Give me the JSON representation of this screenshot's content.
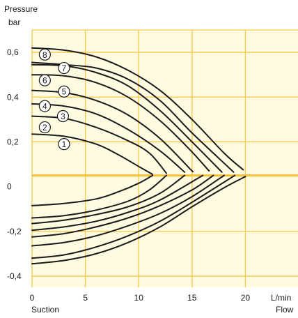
{
  "chart_data": {
    "type": "line",
    "ylabel": [
      "Pressure",
      "bar"
    ],
    "xlabel": [
      "L/min",
      "Flow"
    ],
    "x_origin_label": "Suction",
    "xlim": [
      0,
      25
    ],
    "ylim": [
      -0.45,
      0.7
    ],
    "x_ticks": [
      0,
      5,
      10,
      15,
      20
    ],
    "x_tick_labels": [
      "0",
      "5",
      "10",
      "15",
      "20"
    ],
    "y_ticks": [
      0.6,
      0.4,
      0.2,
      0,
      -0.2,
      -0.4
    ],
    "y_tick_labels": [
      "0,6",
      "0,4",
      "0,2",
      "0",
      "-0,2",
      "-0,4"
    ],
    "zero_line_y": 0.05,
    "grid": true,
    "colors": {
      "background": "#FFFBE0",
      "grid": "#F5C84A",
      "zero_line": "#F2C034",
      "curve": "#1A1A1A"
    },
    "series": [
      {
        "name": "1",
        "label_at": [
          3.0,
          0.19
        ],
        "x": [
          0,
          3,
          6,
          8,
          10,
          11.3
        ],
        "y": [
          0.235,
          0.225,
          0.19,
          0.145,
          0.09,
          0.055
        ]
      },
      {
        "name": "2",
        "label_at": [
          1.2,
          0.265
        ],
        "x": [
          0,
          3,
          6,
          9,
          11,
          12.6
        ],
        "y": [
          0.315,
          0.305,
          0.265,
          0.205,
          0.15,
          0.06
        ]
      },
      {
        "name": "3",
        "label_at": [
          2.9,
          0.315
        ],
        "x": [
          0,
          3,
          6,
          9,
          12,
          14.3
        ],
        "y": [
          0.37,
          0.36,
          0.325,
          0.255,
          0.16,
          0.065
        ]
      },
      {
        "name": "4",
        "label_at": [
          1.2,
          0.36
        ],
        "x": [
          0,
          3,
          6,
          9,
          12,
          14.8,
          15.0
        ],
        "y": [
          0.43,
          0.42,
          0.385,
          0.32,
          0.215,
          0.08,
          0.07
        ]
      },
      {
        "name": "5",
        "label_at": [
          3.0,
          0.425
        ],
        "x": [
          0,
          3,
          6,
          9,
          12,
          14.8,
          16.6
        ],
        "y": [
          0.5,
          0.495,
          0.465,
          0.4,
          0.295,
          0.165,
          0.07
        ]
      },
      {
        "name": "6",
        "label_at": [
          1.2,
          0.475
        ],
        "x": [
          0,
          3,
          6,
          9,
          12,
          15,
          17.8
        ],
        "y": [
          0.545,
          0.54,
          0.51,
          0.45,
          0.34,
          0.2,
          0.065
        ]
      },
      {
        "name": "7",
        "label_at": [
          3.0,
          0.53
        ],
        "x": [
          0,
          3,
          6,
          9,
          12,
          15,
          18.9
        ],
        "y": [
          0.555,
          0.545,
          0.53,
          0.48,
          0.385,
          0.24,
          0.065
        ]
      },
      {
        "name": "8",
        "label_at": [
          1.2,
          0.59
        ],
        "x": [
          0,
          3,
          6,
          9,
          12,
          15,
          18,
          19.8
        ],
        "y": [
          0.62,
          0.61,
          0.58,
          0.52,
          0.43,
          0.3,
          0.15,
          0.075
        ]
      },
      {
        "name": "",
        "x": [
          0,
          3,
          6,
          8,
          10,
          11.3
        ],
        "y": [
          -0.085,
          -0.075,
          -0.055,
          -0.025,
          0.015,
          0.05
        ]
      },
      {
        "name": "",
        "x": [
          0,
          3,
          6,
          9,
          11,
          12.6
        ],
        "y": [
          -0.14,
          -0.13,
          -0.105,
          -0.065,
          -0.015,
          0.05
        ]
      },
      {
        "name": "",
        "x": [
          0,
          3,
          6,
          9,
          12,
          14.3
        ],
        "y": [
          -0.165,
          -0.15,
          -0.125,
          -0.09,
          -0.03,
          0.05
        ]
      },
      {
        "name": "",
        "x": [
          0,
          3,
          6,
          9,
          12,
          16.0
        ],
        "y": [
          -0.195,
          -0.18,
          -0.155,
          -0.115,
          -0.06,
          0.05
        ]
      },
      {
        "name": "",
        "x": [
          0,
          3,
          6,
          9,
          12,
          15,
          17.0
        ],
        "y": [
          -0.225,
          -0.21,
          -0.18,
          -0.14,
          -0.085,
          -0.015,
          0.05
        ]
      },
      {
        "name": "",
        "x": [
          0,
          3,
          6,
          9,
          12,
          15,
          18.0
        ],
        "y": [
          -0.265,
          -0.25,
          -0.22,
          -0.175,
          -0.12,
          -0.045,
          0.05
        ]
      },
      {
        "name": "",
        "x": [
          0,
          3,
          6,
          9,
          12,
          15,
          19.0
        ],
        "y": [
          -0.32,
          -0.305,
          -0.27,
          -0.22,
          -0.155,
          -0.07,
          0.05
        ]
      },
      {
        "name": "",
        "x": [
          0,
          3,
          6,
          9,
          12,
          15,
          18,
          20.0
        ],
        "y": [
          -0.345,
          -0.33,
          -0.3,
          -0.25,
          -0.18,
          -0.09,
          -0.005,
          0.045
        ]
      }
    ]
  }
}
